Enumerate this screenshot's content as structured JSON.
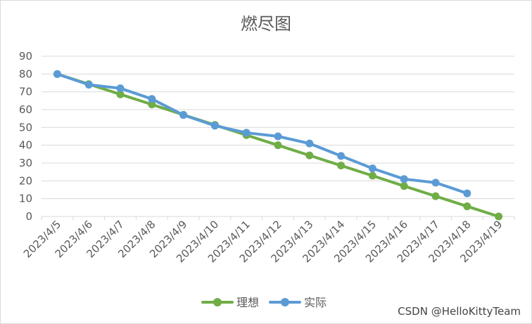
{
  "chart_data": {
    "type": "line",
    "title": "燃尽图",
    "categories": [
      "2023/4/5",
      "2023/4/6",
      "2023/4/7",
      "2023/4/8",
      "2023/4/9",
      "2023/4/10",
      "2023/4/11",
      "2023/4/12",
      "2023/4/13",
      "2023/4/14",
      "2023/4/15",
      "2023/4/16",
      "2023/4/17",
      "2023/4/18",
      "2023/4/19"
    ],
    "ylim": [
      0,
      90
    ],
    "yticks": [
      0,
      10,
      20,
      30,
      40,
      50,
      60,
      70,
      80,
      90
    ],
    "grid": true,
    "legend_position": "bottom",
    "series": [
      {
        "name": "理想",
        "color": "#70ad47",
        "values": [
          80,
          74.3,
          68.6,
          62.9,
          57.1,
          51.4,
          45.7,
          40,
          34.3,
          28.6,
          22.9,
          17.1,
          11.4,
          5.7,
          0
        ]
      },
      {
        "name": "实际",
        "color": "#5b9bd5",
        "values": [
          80,
          74,
          72,
          66,
          57,
          51,
          47,
          45,
          41,
          34,
          27,
          21,
          19,
          13,
          null
        ]
      }
    ]
  },
  "watermark": "CSDN @HelloKittyTeam"
}
